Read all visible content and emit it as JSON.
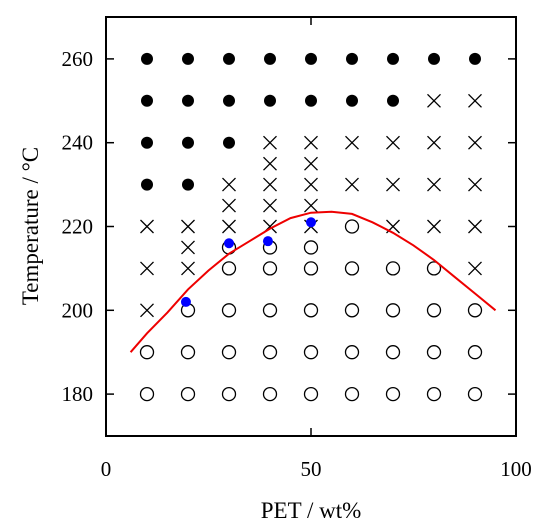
{
  "chart_data": {
    "type": "scatter",
    "title": "",
    "xlabel": "PET / wt%",
    "ylabel": "Temperature / °C",
    "xlim": [
      0,
      100
    ],
    "ylim": [
      170,
      270
    ],
    "x_ticks": [
      0,
      50,
      100
    ],
    "y_ticks": [
      180,
      200,
      220,
      240,
      260
    ],
    "grid": false,
    "legend": "none",
    "series": [
      {
        "marker": "filled-circle",
        "color": "#000000",
        "points": [
          [
            10,
            260
          ],
          [
            20,
            260
          ],
          [
            30,
            260
          ],
          [
            40,
            260
          ],
          [
            50,
            260
          ],
          [
            60,
            260
          ],
          [
            70,
            260
          ],
          [
            80,
            260
          ],
          [
            90,
            260
          ],
          [
            10,
            250
          ],
          [
            20,
            250
          ],
          [
            30,
            250
          ],
          [
            40,
            250
          ],
          [
            50,
            250
          ],
          [
            60,
            250
          ],
          [
            70,
            250
          ],
          [
            10,
            240
          ],
          [
            20,
            240
          ],
          [
            30,
            240
          ],
          [
            10,
            230
          ],
          [
            20,
            230
          ]
        ]
      },
      {
        "marker": "cross",
        "color": "#000000",
        "points": [
          [
            80,
            250
          ],
          [
            90,
            250
          ],
          [
            40,
            240
          ],
          [
            50,
            240
          ],
          [
            60,
            240
          ],
          [
            70,
            240
          ],
          [
            80,
            240
          ],
          [
            90,
            240
          ],
          [
            40,
            235
          ],
          [
            50,
            235
          ],
          [
            30,
            230
          ],
          [
            40,
            230
          ],
          [
            50,
            230
          ],
          [
            60,
            230
          ],
          [
            70,
            230
          ],
          [
            80,
            230
          ],
          [
            90,
            230
          ],
          [
            30,
            225
          ],
          [
            40,
            225
          ],
          [
            50,
            225
          ],
          [
            10,
            220
          ],
          [
            20,
            220
          ],
          [
            30,
            220
          ],
          [
            40,
            220
          ],
          [
            50,
            220
          ],
          [
            70,
            220
          ],
          [
            80,
            220
          ],
          [
            90,
            220
          ],
          [
            20,
            215
          ],
          [
            10,
            210
          ],
          [
            20,
            210
          ],
          [
            90,
            210
          ],
          [
            10,
            200
          ]
        ]
      },
      {
        "marker": "open-circle",
        "color": "#000000",
        "points": [
          [
            60,
            220
          ],
          [
            30,
            215
          ],
          [
            40,
            215
          ],
          [
            50,
            215
          ],
          [
            30,
            210
          ],
          [
            40,
            210
          ],
          [
            50,
            210
          ],
          [
            60,
            210
          ],
          [
            70,
            210
          ],
          [
            80,
            210
          ],
          [
            20,
            200
          ],
          [
            30,
            200
          ],
          [
            40,
            200
          ],
          [
            50,
            200
          ],
          [
            60,
            200
          ],
          [
            70,
            200
          ],
          [
            80,
            200
          ],
          [
            90,
            200
          ],
          [
            10,
            190
          ],
          [
            20,
            190
          ],
          [
            30,
            190
          ],
          [
            40,
            190
          ],
          [
            50,
            190
          ],
          [
            60,
            190
          ],
          [
            70,
            190
          ],
          [
            80,
            190
          ],
          [
            90,
            190
          ],
          [
            10,
            180
          ],
          [
            20,
            180
          ],
          [
            30,
            180
          ],
          [
            40,
            180
          ],
          [
            50,
            180
          ],
          [
            60,
            180
          ],
          [
            70,
            180
          ],
          [
            80,
            180
          ],
          [
            90,
            180
          ]
        ]
      },
      {
        "marker": "filled-circle",
        "color": "#0000ff",
        "points": [
          [
            19.5,
            202
          ],
          [
            30,
            216
          ],
          [
            39.5,
            216.5
          ],
          [
            50,
            221
          ]
        ]
      },
      {
        "marker": "line",
        "color": "#ee0000",
        "points": [
          [
            6,
            190
          ],
          [
            10,
            194.5
          ],
          [
            15,
            199.5
          ],
          [
            20,
            205
          ],
          [
            25,
            209.5
          ],
          [
            30,
            213.5
          ],
          [
            35,
            216.5
          ],
          [
            40,
            219.5
          ],
          [
            45,
            222
          ],
          [
            50,
            223.3
          ],
          [
            55,
            223.5
          ],
          [
            60,
            223
          ],
          [
            65,
            221
          ],
          [
            70,
            218.5
          ],
          [
            75,
            215.5
          ],
          [
            80,
            212
          ],
          [
            85,
            208
          ],
          [
            90,
            204
          ],
          [
            95,
            200
          ]
        ]
      }
    ]
  }
}
